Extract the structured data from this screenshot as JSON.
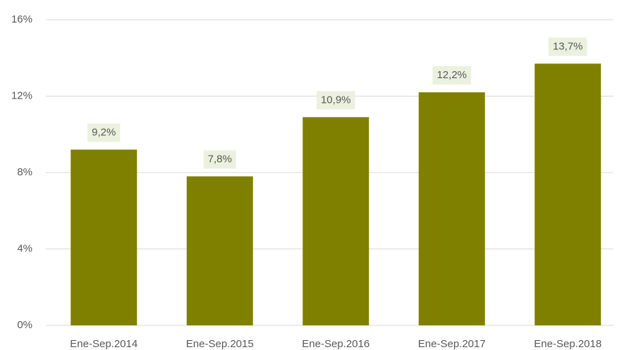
{
  "chart_data": {
    "type": "bar",
    "categories": [
      "Ene-Sep.2014",
      "Ene-Sep.2015",
      "Ene-Sep.2016",
      "Ene-Sep.2017",
      "Ene-Sep.2018"
    ],
    "values": [
      9.2,
      7.8,
      10.9,
      12.2,
      13.7
    ],
    "value_labels": [
      "9,2%",
      "7,8%",
      "10,9%",
      "12,2%",
      "13,7%"
    ],
    "color": "#808000",
    "ylim": [
      0,
      16
    ],
    "yticks": [
      {
        "value": 0,
        "label": "0%"
      },
      {
        "value": 4,
        "label": "4%"
      },
      {
        "value": 8,
        "label": "8%"
      },
      {
        "value": 12,
        "label": "12%"
      },
      {
        "value": 16,
        "label": "16%"
      }
    ],
    "grid": true
  }
}
